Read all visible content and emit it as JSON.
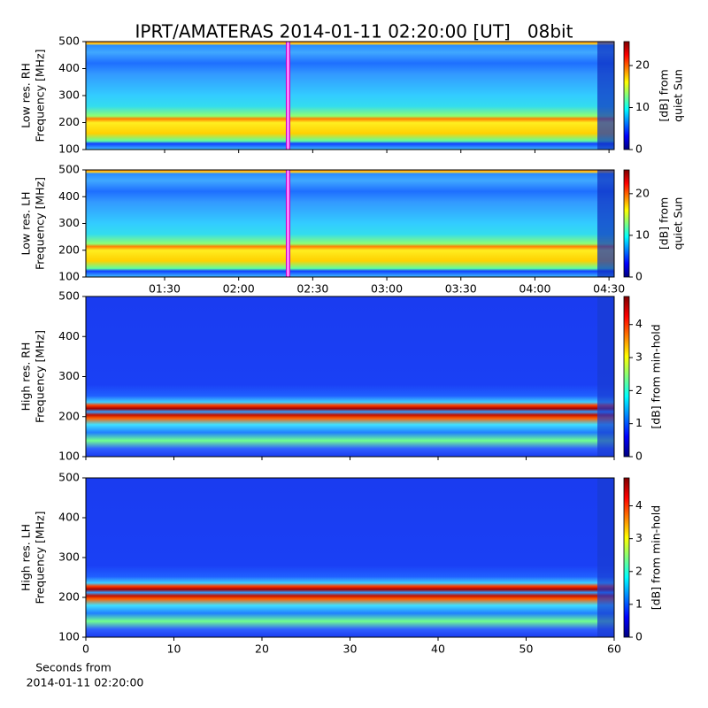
{
  "figure": {
    "title": "IPRT/AMATERAS 2014-01-11 02:20:00 [UT]   08bit",
    "xlabel": [
      "Seconds from",
      "2014-01-11 02:20:00"
    ]
  },
  "colormap": [
    "#00007f",
    "#0000ff",
    "#007fff",
    "#00ffff",
    "#7fff7f",
    "#ffff00",
    "#ff7f00",
    "#ff0000",
    "#7f0000"
  ],
  "chart_data": [
    {
      "type": "spectrogram",
      "ylabel": [
        "Low res. RH",
        "Frequency [MHz]"
      ],
      "ylim": [
        100,
        500
      ],
      "yticks": [
        100,
        200,
        300,
        400,
        500
      ],
      "xlim": [
        58.1,
        272.1
      ],
      "highlight_x": 140,
      "colorbar": {
        "label": [
          "[dB] from",
          "quiet Sun"
        ],
        "lim": [
          0,
          25.7
        ],
        "ticks": [
          0,
          10,
          20
        ]
      }
    },
    {
      "type": "spectrogram",
      "ylabel": [
        "Low res. LH",
        "Frequency [MHz]"
      ],
      "ylim": [
        100,
        500
      ],
      "yticks": [
        100,
        200,
        300,
        400,
        500
      ],
      "xlim": [
        58.1,
        272.1
      ],
      "highlight_x": 140,
      "xticks": [
        {
          "value": 90,
          "label": "01:30"
        },
        {
          "value": 120,
          "label": "02:00"
        },
        {
          "value": 150,
          "label": "02:30"
        },
        {
          "value": 180,
          "label": "03:00"
        },
        {
          "value": 210,
          "label": "03:30"
        },
        {
          "value": 240,
          "label": "04:00"
        },
        {
          "value": 270,
          "label": "04:30"
        }
      ],
      "colorbar": {
        "label": [
          "[dB] from",
          "quiet Sun"
        ],
        "lim": [
          0,
          25.7
        ],
        "ticks": [
          0,
          10,
          20
        ]
      }
    },
    {
      "type": "spectrogram",
      "ylabel": [
        "High res. RH",
        "Frequency [MHz]"
      ],
      "ylim": [
        100,
        500
      ],
      "yticks": [
        100,
        200,
        300,
        400,
        500
      ],
      "xlim": [
        0,
        60
      ],
      "colorbar": {
        "label": [
          "[dB] from min-hold"
        ],
        "lim": [
          0,
          4.85
        ],
        "ticks": [
          0,
          1,
          2,
          3,
          4
        ]
      }
    },
    {
      "type": "spectrogram",
      "ylabel": [
        "High res. LH",
        "Frequency [MHz]"
      ],
      "ylim": [
        100,
        500
      ],
      "yticks": [
        100,
        200,
        300,
        400,
        500
      ],
      "xlim": [
        0,
        60
      ],
      "xticks": [
        0,
        10,
        20,
        30,
        40,
        50,
        60
      ],
      "colorbar": {
        "label": [
          "[dB] from min-hold"
        ],
        "lim": [
          0,
          4.85
        ],
        "ticks": [
          0,
          1,
          2,
          3,
          4
        ]
      }
    }
  ]
}
